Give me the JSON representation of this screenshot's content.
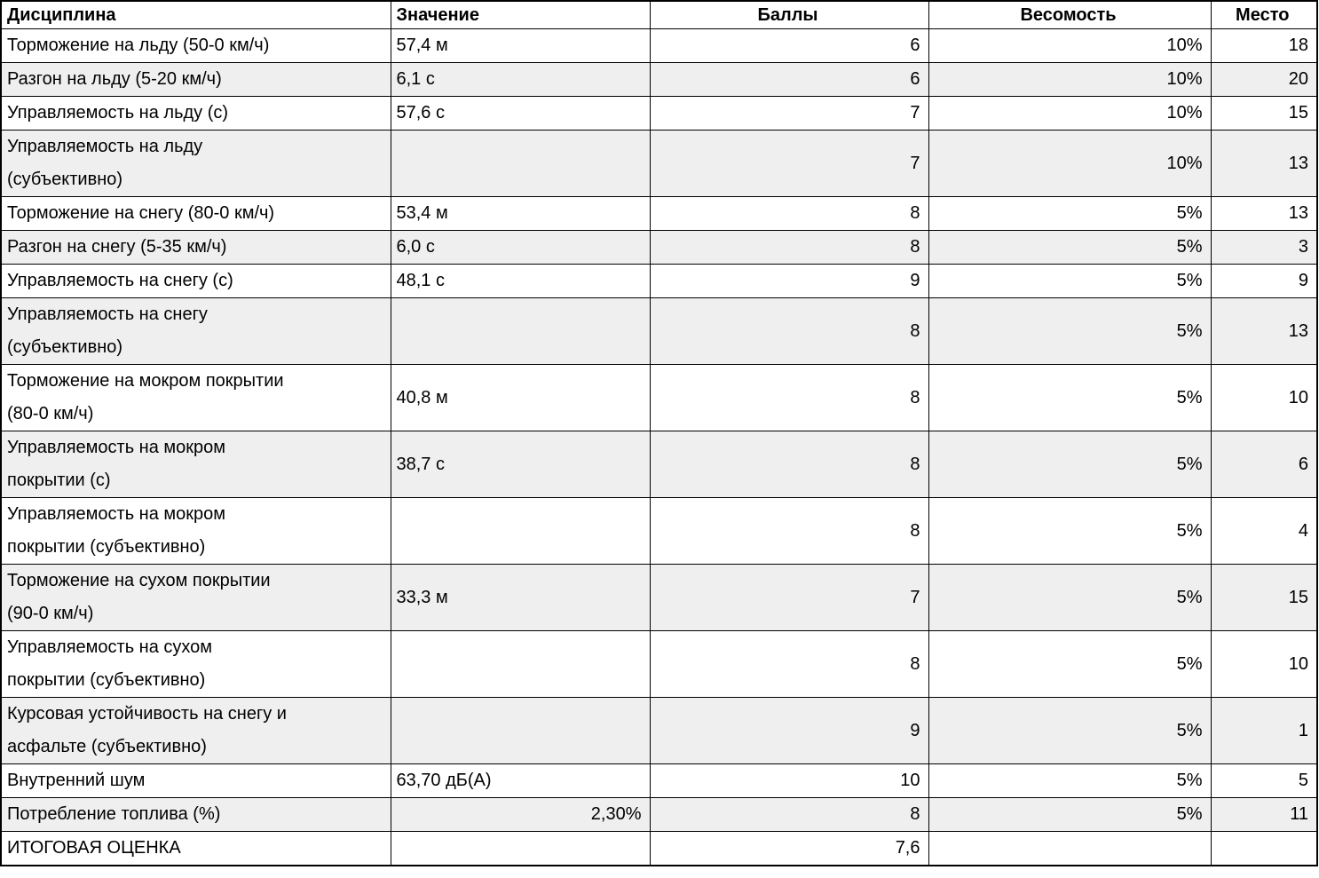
{
  "table": {
    "columns": [
      {
        "label": "Дисциплина",
        "align": "left"
      },
      {
        "label": "Значение",
        "align": "left"
      },
      {
        "label": "Баллы",
        "align": "center"
      },
      {
        "label": "Весомость",
        "align": "center"
      },
      {
        "label": "Место",
        "align": "center"
      }
    ],
    "rows": [
      {
        "discipline": "Торможение на льду (50-0 км/ч)",
        "value": "57,4 м",
        "value_align": "left",
        "points": "6",
        "weight": "10%",
        "place": "18"
      },
      {
        "discipline": "Разгон на льду (5-20 км/ч)",
        "value": "6,1 с",
        "value_align": "left",
        "points": "6",
        "weight": "10%",
        "place": "20"
      },
      {
        "discipline": "Управляемость на льду (с)",
        "value": "57,6 с",
        "value_align": "left",
        "points": "7",
        "weight": "10%",
        "place": "15"
      },
      {
        "discipline": "Управляемость на льду\n(субъективно)",
        "value": "",
        "value_align": "left",
        "points": "7",
        "weight": "10%",
        "place": "13"
      },
      {
        "discipline": "Торможение на снегу (80-0 км/ч)",
        "value": "53,4 м",
        "value_align": "left",
        "points": "8",
        "weight": "5%",
        "place": "13"
      },
      {
        "discipline": "Разгон на снегу (5-35 км/ч)",
        "value": "6,0 с",
        "value_align": "left",
        "points": "8",
        "weight": "5%",
        "place": "3"
      },
      {
        "discipline": "Управляемость на снегу (с)",
        "value": "48,1 с",
        "value_align": "left",
        "points": "9",
        "weight": "5%",
        "place": "9"
      },
      {
        "discipline": "Управляемость на снегу\n(субъективно)",
        "value": "",
        "value_align": "left",
        "points": "8",
        "weight": "5%",
        "place": "13"
      },
      {
        "discipline": "Торможение на мокром покрытии\n(80-0 км/ч)",
        "value": "40,8 м",
        "value_align": "left",
        "points": "8",
        "weight": "5%",
        "place": "10"
      },
      {
        "discipline": "Управляемость на мокром\nпокрытии (с)",
        "value": "38,7 с",
        "value_align": "left",
        "points": "8",
        "weight": "5%",
        "place": "6"
      },
      {
        "discipline": "Управляемость на мокром\nпокрытии (субъективно)",
        "value": "",
        "value_align": "left",
        "points": "8",
        "weight": "5%",
        "place": "4"
      },
      {
        "discipline": "Торможение на сухом покрытии\n(90-0 км/ч)",
        "value": "33,3 м",
        "value_align": "left",
        "points": "7",
        "weight": "5%",
        "place": "15"
      },
      {
        "discipline": "Управляемость на сухом\nпокрытии (субъективно)",
        "value": "",
        "value_align": "left",
        "points": "8",
        "weight": "5%",
        "place": "10"
      },
      {
        "discipline": "Курсовая устойчивость на снегу и\nасфальте (субъективно)",
        "value": "",
        "value_align": "left",
        "points": "9",
        "weight": "5%",
        "place": "1"
      },
      {
        "discipline": "Внутренний шум",
        "value": "63,70 дБ(А)",
        "value_align": "left",
        "points": "10",
        "weight": "5%",
        "place": "5"
      },
      {
        "discipline": "Потребление топлива (%)",
        "value": "2,30%",
        "value_align": "right",
        "points": "8",
        "weight": "5%",
        "place": "11"
      },
      {
        "discipline": "ИТОГОВАЯ ОЦЕНКА",
        "value": "",
        "value_align": "left",
        "points": "7,6",
        "weight": "",
        "place": ""
      }
    ]
  },
  "colors": {
    "band_gray": "#efefef",
    "border": "#000000",
    "text": "#000000",
    "background": "#ffffff"
  }
}
